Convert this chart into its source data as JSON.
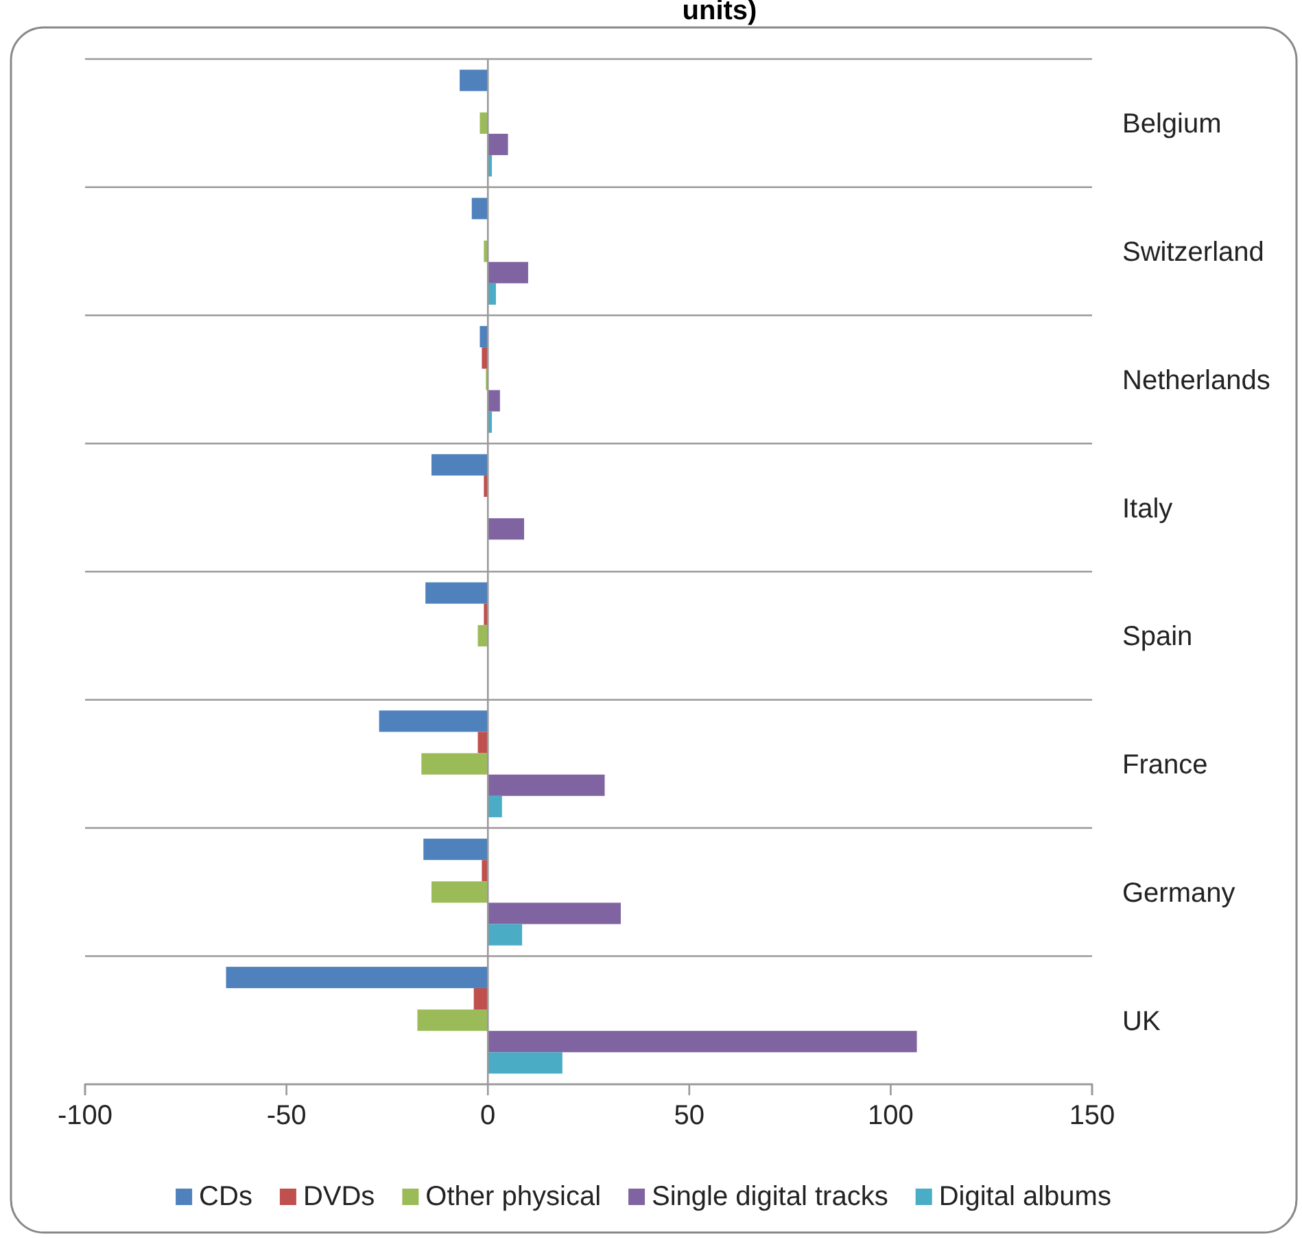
{
  "chart_data": {
    "type": "bar",
    "orientation": "horizontal",
    "title": "units)",
    "categories": [
      "Belgium",
      "Switzerland",
      "Netherlands",
      "Italy",
      "Spain",
      "France",
      "Germany",
      "UK"
    ],
    "series": [
      {
        "name": "CDs",
        "color": "#4f81bd",
        "values": [
          -7,
          -4,
          -2,
          -14,
          -15.5,
          -27,
          -16,
          -65
        ]
      },
      {
        "name": "DVDs",
        "color": "#c0504d",
        "values": [
          null,
          null,
          -1.5,
          -1,
          -1,
          -2.5,
          -1.5,
          -3.5
        ]
      },
      {
        "name": "Other physical",
        "color": "#9bbb59",
        "values": [
          -2,
          -1,
          -0.5,
          null,
          -2.5,
          -16.5,
          -14,
          -17.5
        ]
      },
      {
        "name": "Single digital tracks",
        "color": "#8064a2",
        "values": [
          5,
          10,
          3,
          9,
          null,
          29,
          33,
          106.5
        ]
      },
      {
        "name": "Digital albums",
        "color": "#4bacc6",
        "values": [
          1,
          2,
          1,
          null,
          null,
          3.5,
          8.5,
          18.5
        ]
      }
    ],
    "xlim": [
      -100,
      150
    ],
    "xticks": [
      -100,
      -50,
      0,
      50,
      100,
      150
    ],
    "grid": true,
    "legend": "bottom"
  }
}
